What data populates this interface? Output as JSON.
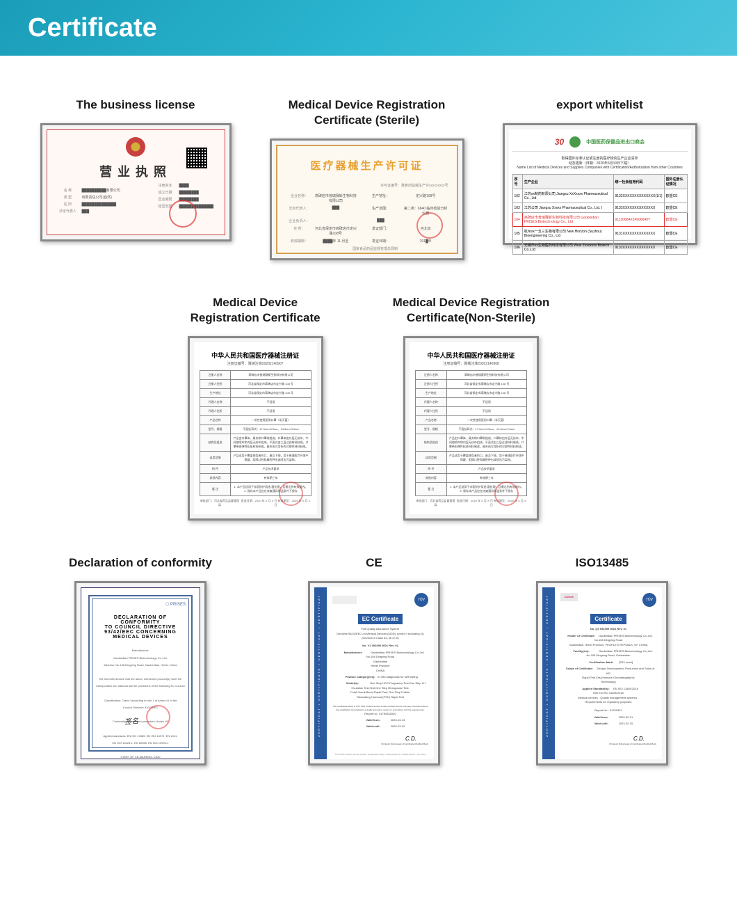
{
  "header": {
    "title": "Certificate"
  },
  "row1": {
    "biz": {
      "title": "The business license",
      "heading": "营业执照"
    },
    "sterile": {
      "title_line1": "Medical Device Registration",
      "title_line2": "Certificate (Sterile)",
      "heading": "医疗器械生产许可证",
      "footer": "国家食品药品监督管理总局制"
    },
    "export": {
      "title": "export whitelist",
      "logo1": "30",
      "logo_text": "中国医药保健品进出口商会",
      "desc1": "取得国外标准认证或注册的医疗物资生产企业清单",
      "desc2": "动态更新（日期：2020年6月10日下载）",
      "desc3": "Name List of Medical Devices and Supplies Companies with Certification/Authorization from other Countries",
      "headers": [
        "序号",
        "生产企业",
        "统一社会信用代码",
        "国外注册认证情况"
      ],
      "rows": [
        [
          "102",
          "江苏xx制药有限公司\nJiangsu XxXxxxx Pharmaceutical Co., Ltd",
          "9132XXXXXXXXXXXXXX(1/1)",
          "欧盟CE"
        ],
        [
          "103",
          "江苏公司 Jiangsu Xxxxx Pharmaceutical Co., Ltd. I",
          "9132XXXXXXXXXXXXXX",
          "欧盟CE"
        ],
        [
          "104",
          "高碑店市普瑞赛斯生物科技有限公司\nGaobeidian PRISES Biotechnology Co., Ltd",
          "91130684X24906649Y",
          "欧盟CE"
        ],
        [
          "105",
          "杭州xx一支三生物有限公司\nNew Horizon (Suzhou) Bioengineering Co., Ltd",
          "9131XXXXXXXXXXXXXX",
          "欧盟CE"
        ],
        [
          "106",
          "无锡市xx生物医药科技有限公司\nWuxi Zxxxxxxx Biotech Co.,Ltd",
          "9132XXXXXXXXXXXXXX",
          "欧盟CE"
        ]
      ]
    }
  },
  "row2": {
    "reg1": {
      "title_line1": "Medical Device",
      "title_line2": "Registration Certificate"
    },
    "reg2": {
      "title_line1": "Medical Device Registration",
      "title_line2": "Certificate(Non-Sterile)"
    },
    "reg_common": {
      "heading": "中华人民共和国医疗器械注册证",
      "sub1": "注册证编号：冀械注准20202140907",
      "sub2": "注册证编号：冀械注准20202140908",
      "rows": [
        [
          "注册人名称",
          "高碑店市普瑞赛斯生物科技有限公司"
        ],
        [
          "注册人住所",
          "河北省保定市高碑店市定兴路 108 号"
        ],
        [
          "生产地址",
          "河北省保定市高碑店市定兴路 108 号"
        ],
        [
          "代理人名称",
          "不适用"
        ],
        [
          "代理人住所",
          "不适用"
        ],
        [
          "产品名称",
          "一次性使用医用口罩（非灭菌）"
        ],
        [
          "型号、规格",
          "平面挂耳式：17.5cm×9.5cm、14.5cm×9.5cm"
        ],
        [
          "结构及组成",
          "产品由口罩体、鼻夹和口罩带组成。口罩体由外层无纺布、中间熔喷布和内层无纺布组成。平面式由三层过滤材料制成。口罩带由弹性松紧材料制成。鼻夹由可弯折的可塑性材料制成。"
        ],
        [
          "适用范围",
          "产品适用于覆盖使用者的口、鼻及下颌，用于普通医疗环境中佩戴、阻隔口腔和鼻腔呼出或喷出污染物。"
        ],
        [
          "附    件",
          "产品技术要求"
        ],
        [
          "其他内容",
          "有效期三年"
        ],
        [
          "备    注",
          "1. 本产品适用于非医防护用途-菌处理，且需达到有效期内。\n2. 保存本产品应在凉爽通风常温条件下保存"
        ]
      ],
      "footer_left": "审批部门：河北省药品监督管理局",
      "footer_right": "批准日期：2020 年 X 月 X 日\n有效期至：2025 年 X 月 X 日"
    }
  },
  "row3": {
    "doc": {
      "title": "Declaration of conformity",
      "logo": "⬡ PRISES",
      "heading": "DECLARATION OF CONFORMITY\nTO COUNCIL DIRECTIVE 93/42/EEC CONCERNING\nMEDICAL DEVICES",
      "body_lines": [
        "Manufacturer:",
        "Gaobeidian PRISES Biotechnology Co.,Ltd.",
        "Address: No.108 Dingxing Road, Gaobeidian, Hebei, China",
        "",
        "We herewith declare that the above mentioned product(s) meet the",
        "transposition into national law the provisions of the following EC Council",
        "",
        "Classification: Class I according to rule 1 of Annex IX of the",
        "Council Directive 93/42/EEC",
        "",
        "Conformity assessment procedure: Annex VII",
        "",
        "Applied standards: EN ISO 13485, EN ISO 14971, EN 1041,",
        "EN ISO 15223-1, EN 62366, EN ISO 10993-1",
        "",
        "START OF CE-MARKING: 2020"
      ],
      "sign": "签名"
    },
    "ce": {
      "title": "CE",
      "cert_title": "EC Certificate",
      "sub": "Full Quality Assurance System\nDirective 93/42/EEC on Medical Devices (MDD), Annex II excluding (4)\n(Devices in Class IIa, IIb or III)",
      "no": "No. V1 092399 0001 Rev. 02",
      "rows": [
        [
          "Manufacturer:",
          "Gaobeidian PRISES Biotechnology Co.,Ltd.\nNo.108 Dingxing Road\nGaobeidian\nHebei Province\nCHINA"
        ],
        [
          "Product Category(ies):",
          "In Vitro diagnostic for self testing"
        ],
        [
          "Model(s):",
          "One Step HCG Pregnancy Test;One Step LH\nOvulation Test;Test;One Step Menopause Test;\nFetal Occult Blood Rapid Test; One Step Follicle\nStimulating Hormone(FSH) Rapid Test"
        ]
      ],
      "valid_from": "2020-03-13",
      "valid_until": "2025-03-02",
      "report": "Report no.: 51759332020",
      "signer": "Christoph Dicks\nHead of Certification/Notified Body",
      "footer": "TÜV SÜD Product Service GmbH • Certification Body • Ridlerstraße 65 • 80339 Munich • Germany"
    },
    "iso": {
      "title": "ISO13485",
      "danak": "DANAK",
      "cert_title": "Certificate",
      "no": "No. Q5 092399 0001 Rev. 01",
      "rows": [
        [
          "Holder of Certificate:",
          "Gaobeidian PRISES Biotechnology Co.,Ltd.\nNo.108 Dingxing Road\nGaobeidian, Hebei Province, PEOPLE'S REPUBLIC OF CHINA"
        ],
        [
          "Facility(ies):",
          "Gaobeidian PRISES Biotechnology Co.,Ltd.\nNo.108 Dingxing Road, Gaobeidian"
        ],
        [
          "Certification Mark:",
          "[TÜV mark]"
        ],
        [
          "Scope of Certificate:",
          "Design, Development, Production and Sales of IVD\nRapid Test Kits (Immune Chromatographic\nTechnology)"
        ],
        [
          "Applied Standard(s):",
          "EN ISO 13485:2016\nDIN EN ISO 13485:2016\nMedical devices - Quality management systems -\nRequirements for regulatory purposes"
        ]
      ],
      "report": "Report No.: 51759331",
      "valid_from": "2020-02-21",
      "valid_until": "2023-02-20",
      "signer": "Christoph Dicks\nHead of Certification/Notified Body"
    }
  }
}
